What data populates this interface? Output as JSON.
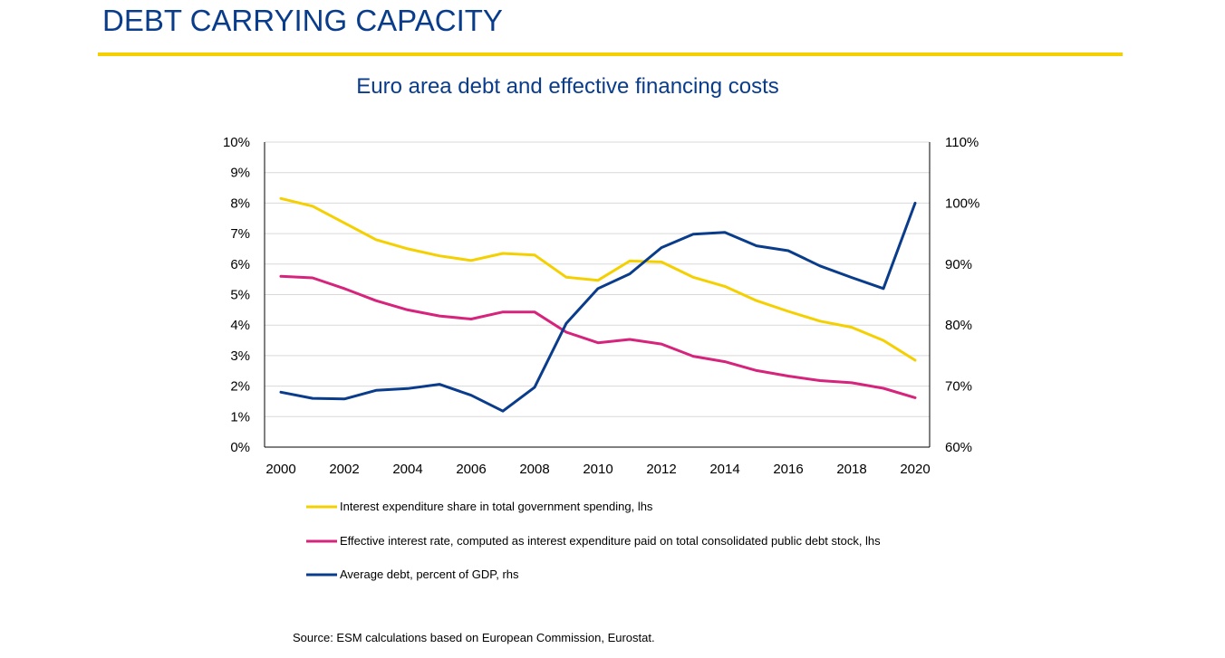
{
  "header": {
    "title": "DEBT CARRYING CAPACITY"
  },
  "source_note": "Source: ESM calculations based on European Commission, Eurostat.",
  "colors": {
    "title": "#0a3c8c",
    "rule": "#f5d000",
    "interest_share": "#f5d000",
    "effective_rate": "#d6247c",
    "debt": "#0a3c8c",
    "grid": "#d9d9d9"
  },
  "chart_data": {
    "type": "line",
    "title": "Euro area debt and effective financing costs",
    "x": [
      2000,
      2001,
      2002,
      2003,
      2004,
      2005,
      2006,
      2007,
      2008,
      2009,
      2010,
      2011,
      2012,
      2013,
      2014,
      2015,
      2016,
      2017,
      2018,
      2019,
      2020
    ],
    "x_ticks": [
      "2000",
      "2002",
      "2004",
      "2006",
      "2008",
      "2010",
      "2012",
      "2014",
      "2016",
      "2018",
      "2020"
    ],
    "y_left": {
      "range": [
        0,
        10
      ],
      "ticks": [
        "0%",
        "1%",
        "2%",
        "3%",
        "4%",
        "5%",
        "6%",
        "7%",
        "8%",
        "9%",
        "10%"
      ]
    },
    "y_right": {
      "range": [
        60,
        110
      ],
      "ticks": [
        "60%",
        "70%",
        "80%",
        "90%",
        "100%",
        "110%"
      ]
    },
    "grid": "horizontal",
    "legend_position": "bottom",
    "series": [
      {
        "name": "Interest expenditure share in total government spending, lhs",
        "axis": "left",
        "color_key": "interest_share",
        "values": [
          8.15,
          7.9,
          7.35,
          6.8,
          6.5,
          6.27,
          6.12,
          6.35,
          6.3,
          5.57,
          5.47,
          6.1,
          6.07,
          5.57,
          5.27,
          4.8,
          4.45,
          4.13,
          3.93,
          3.5,
          2.85
        ]
      },
      {
        "name": "Effective interest rate, computed as interest expenditure paid on total consolidated public debt stock, lhs",
        "axis": "left",
        "color_key": "effective_rate",
        "values": [
          5.6,
          5.55,
          5.2,
          4.8,
          4.5,
          4.3,
          4.2,
          4.43,
          4.43,
          3.77,
          3.42,
          3.53,
          3.38,
          2.98,
          2.8,
          2.51,
          2.33,
          2.18,
          2.11,
          1.93,
          1.62
        ]
      },
      {
        "name": "Average debt, percent of GDP, rhs",
        "axis": "right",
        "color_key": "debt",
        "values": [
          69.0,
          68.0,
          67.9,
          69.3,
          69.6,
          70.3,
          68.5,
          65.9,
          69.8,
          80.3,
          86.0,
          88.4,
          92.7,
          94.9,
          95.2,
          93.0,
          92.2,
          89.7,
          87.8,
          86.0,
          100.0
        ]
      }
    ]
  }
}
